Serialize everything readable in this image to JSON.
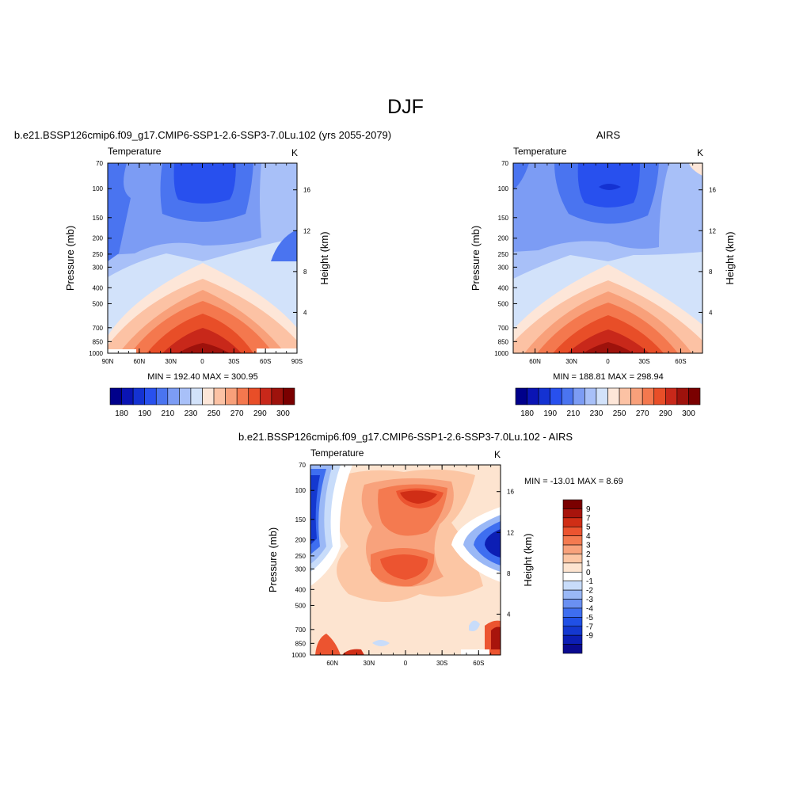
{
  "figure_title": "DJF",
  "colors": {
    "abs_fill": [
      "#00008b",
      "#0a14b4",
      "#1432d2",
      "#2850ee",
      "#4a74f0",
      "#7c9cf4",
      "#a8c0f8",
      "#d2e2fa",
      "#fde6d8",
      "#fcc2a4",
      "#f8a07a",
      "#f4784e",
      "#e84e28",
      "#c8281a",
      "#9e120c",
      "#7a0000"
    ],
    "diff_fill": [
      "#0a0a90",
      "#0c1eb4",
      "#1438d0",
      "#2050e6",
      "#3e6ef0",
      "#6a90f2",
      "#9ab8f6",
      "#c8dcfa",
      "#ffffff",
      "#fde4d0",
      "#fcc6a4",
      "#f8a27c",
      "#f47a50",
      "#ec5430",
      "#d02e16",
      "#a8140c",
      "#7a0000"
    ]
  },
  "chart_data": [
    {
      "type": "heatmap",
      "title": "b.e21.BSSP126cmip6.f09_g17.CMIP6-SSP1-2.6-SSP3-7.0Lu.102 (yrs 2055-2079)",
      "left_label": "Temperature",
      "right_label": "K",
      "ylabel": "Pressure (mb)",
      "y2label": "Height (km)",
      "x_ticks": [
        "90N",
        "60N",
        "30N",
        "0",
        "30S",
        "60S",
        "90S"
      ],
      "y_ticks": [
        "70",
        "100",
        "150",
        "200",
        "250",
        "300",
        "400",
        "500",
        "700",
        "850",
        "1000"
      ],
      "height_ticks": [
        "16",
        "12",
        "8",
        "4"
      ],
      "stats": "MIN = 192.40  MAX = 300.95",
      "colorbar_labels": [
        "180",
        "190",
        "210",
        "230",
        "250",
        "270",
        "290",
        "300"
      ],
      "contour_levels": [
        180,
        185,
        190,
        200,
        210,
        220,
        230,
        240,
        250,
        260,
        270,
        280,
        285,
        290,
        295,
        300
      ],
      "ylim": [
        1000,
        70
      ],
      "xlim": [
        "90N",
        "90S"
      ],
      "scale": "log-pressure",
      "data_description": "zonal-mean temperature; ~290-300 K near surface equator, ~200-215 K at 100 mb tropics"
    },
    {
      "type": "heatmap",
      "title": "AIRS",
      "left_label": "Temperature",
      "right_label": "K",
      "ylabel": "Pressure (mb)",
      "y2label": "Height (km)",
      "x_ticks": [
        "60N",
        "30N",
        "0",
        "30S",
        "60S"
      ],
      "y_ticks": [
        "70",
        "100",
        "150",
        "200",
        "250",
        "300",
        "400",
        "500",
        "700",
        "850",
        "1000"
      ],
      "height_ticks": [
        "16",
        "12",
        "8",
        "4"
      ],
      "stats": "MIN = 188.81  MAX = 298.94",
      "colorbar_labels": [
        "180",
        "190",
        "210",
        "230",
        "250",
        "270",
        "290",
        "300"
      ],
      "contour_levels": [
        180,
        185,
        190,
        200,
        210,
        220,
        230,
        240,
        250,
        260,
        270,
        280,
        285,
        290,
        295,
        300
      ],
      "ylim": [
        1000,
        70
      ],
      "scale": "log-pressure"
    },
    {
      "type": "heatmap",
      "title": "b.e21.BSSP126cmip6.f09_g17.CMIP6-SSP1-2.6-SSP3-7.0Lu.102 - AIRS",
      "left_label": "Temperature",
      "right_label": "K",
      "ylabel": "Pressure (mb)",
      "y2label": "Height (km)",
      "x_ticks": [
        "60N",
        "30N",
        "0",
        "30S",
        "60S"
      ],
      "y_ticks": [
        "70",
        "100",
        "150",
        "200",
        "250",
        "300",
        "400",
        "500",
        "700",
        "850",
        "1000"
      ],
      "height_ticks": [
        "16",
        "12",
        "8",
        "4"
      ],
      "stats": "MIN = -13.01  MAX =   8.69",
      "colorbar_labels": [
        "9",
        "7",
        "5",
        "4",
        "3",
        "2",
        "1",
        "0",
        "-1",
        "-2",
        "-3",
        "-4",
        "-5",
        "-7",
        "-9"
      ],
      "ylim": [
        1000,
        70
      ],
      "scale": "log-pressure"
    }
  ]
}
